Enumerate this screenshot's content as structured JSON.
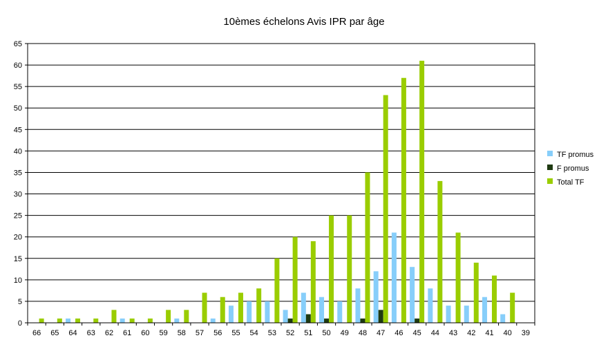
{
  "chart_data": {
    "type": "bar",
    "title": "10èmes échelons Avis IPR  par âge",
    "xlabel": "",
    "ylabel": "",
    "ylim": [
      0,
      65
    ],
    "ytick_step": 5,
    "grid": true,
    "legend_position": "right",
    "categories": [
      "66",
      "65",
      "64",
      "63",
      "62",
      "61",
      "60",
      "59",
      "58",
      "57",
      "56",
      "55",
      "54",
      "53",
      "52",
      "51",
      "50",
      "49",
      "48",
      "47",
      "46",
      "45",
      "44",
      "43",
      "42",
      "41",
      "40",
      "39"
    ],
    "series": [
      {
        "name": "TF promus",
        "color": "#87CEFA",
        "values": [
          0,
          0,
          1,
          0,
          0,
          1,
          0,
          0,
          1,
          0,
          1,
          4,
          5,
          5,
          3,
          7,
          6,
          5,
          8,
          12,
          21,
          13,
          8,
          4,
          4,
          6,
          2,
          0
        ]
      },
      {
        "name": "F promus",
        "color": "#1F3A12",
        "values": [
          0,
          0,
          0,
          0,
          0,
          0,
          0,
          0,
          0,
          0,
          0,
          0,
          0,
          0,
          1,
          2,
          1,
          0,
          1,
          3,
          0,
          1,
          0,
          0,
          0,
          0,
          0,
          0
        ]
      },
      {
        "name": "Total TF",
        "color": "#9ACD00",
        "values": [
          1,
          1,
          1,
          1,
          3,
          1,
          1,
          3,
          3,
          7,
          6,
          7,
          8,
          15,
          20,
          19,
          25,
          25,
          35,
          53,
          57,
          61,
          33,
          21,
          14,
          11,
          7,
          0
        ]
      }
    ]
  }
}
